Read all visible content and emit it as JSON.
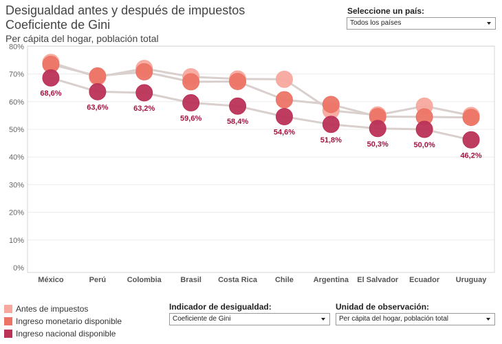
{
  "header": {
    "title_line1": "Desigualdad antes y después de impuestos",
    "title_line2": "Coeficiente de Gini",
    "subtitle": "Per cápita del hogar, población total"
  },
  "controls": {
    "country": {
      "label": "Seleccione un país:",
      "value": "Todos los países"
    },
    "indicator": {
      "label": "Indicador de desigualdad:",
      "value": "Coeficiente de Gini"
    },
    "unit": {
      "label": "Unidad de observación:",
      "value": "Per cápita del hogar, población total"
    }
  },
  "legend": [
    {
      "label": "Antes de impuestos",
      "color": "#f7a99e"
    },
    {
      "label": "Ingreso monetario disponible",
      "color": "#ec7466"
    },
    {
      "label": "Ingreso nacional disponible",
      "color": "#bb3157"
    }
  ],
  "chart_data": {
    "type": "scatter",
    "categories": [
      "México",
      "Perú",
      "Colombia",
      "Brasil",
      "Costa Rica",
      "Chile",
      "Argentina",
      "El Salvador",
      "Ecuador",
      "Uruguay"
    ],
    "yticks": [
      "0%",
      "10%",
      "20%",
      "30%",
      "40%",
      "50%",
      "60%",
      "70%",
      "80%"
    ],
    "ylim": [
      0,
      81
    ],
    "series": [
      {
        "name": "Antes de impuestos",
        "color": "#f7a99e",
        "values": [
          74.2,
          68.9,
          72.0,
          69.0,
          68.2,
          68.1,
          56.8,
          55.2,
          58.4,
          55.0
        ]
      },
      {
        "name": "Ingreso monetario disponible",
        "color": "#ec7466",
        "values": [
          73.5,
          69.3,
          70.8,
          67.2,
          67.3,
          60.7,
          59.0,
          54.6,
          54.5,
          54.3
        ]
      },
      {
        "name": "Ingreso nacional disponible",
        "color": "#bb3157",
        "values": [
          68.6,
          63.6,
          63.2,
          59.6,
          58.4,
          54.6,
          51.8,
          50.3,
          50.0,
          46.2
        ]
      }
    ],
    "data_labels": [
      "68,6%",
      "63,6%",
      "63,2%",
      "59,6%",
      "58,4%",
      "54,6%",
      "51,8%",
      "50,3%",
      "50,0%",
      "46,2%"
    ],
    "label_color": "#a3143f",
    "line_color": "#d9cfcd"
  }
}
